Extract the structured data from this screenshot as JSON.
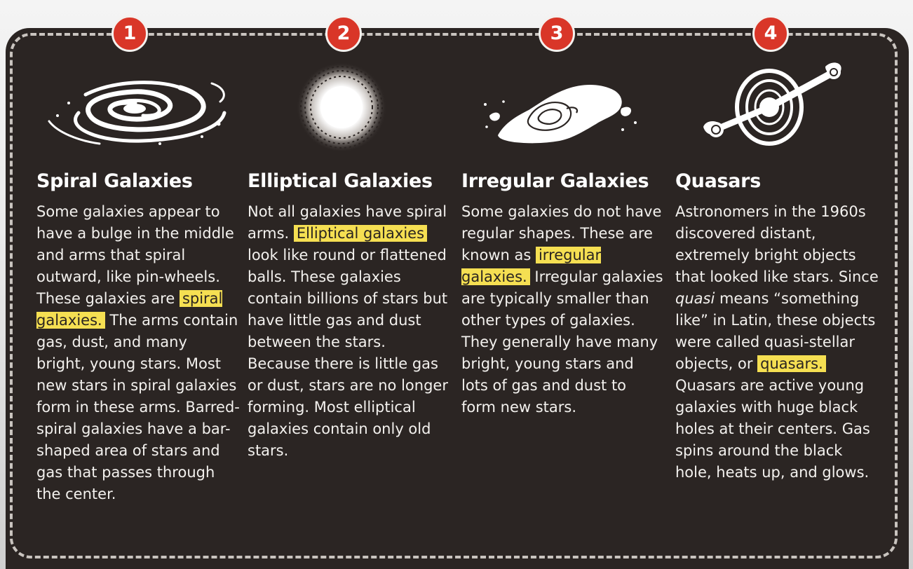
{
  "colors": {
    "panel": "#2b2523",
    "badge": "#d93628",
    "highlight": "#f5df52",
    "text": "#ffffff"
  },
  "columns": [
    {
      "number": "1",
      "icon": "spiral-galaxy-icon",
      "title": "Spiral Galaxies",
      "text_before": "Some galaxies appear to have a bulge in the middle and arms that spiral outward, like pin-wheels. These galaxies are ",
      "highlight": "spiral galaxies.",
      "text_after": " The arms contain gas, dust, and many bright, young stars. Most new stars in spiral galaxies form in these arms. Barred-spiral galaxies have a bar-shaped area of stars and gas that passes through the center."
    },
    {
      "number": "2",
      "icon": "elliptical-galaxy-icon",
      "title": "Elliptical Galaxies",
      "text_before": "Not all galaxies have spiral arms. ",
      "highlight": "Elliptical galaxies",
      "text_after": " look like round or flattened balls. These galaxies contain billions of stars but have little gas and dust between the stars. Because there is little gas or dust, stars are no longer forming. Most elliptical galaxies contain only old stars."
    },
    {
      "number": "3",
      "icon": "irregular-galaxy-icon",
      "title": "Irregular Galaxies",
      "text_before": "Some galaxies do not have regular shapes. These are known as ",
      "highlight": "irregular galaxies.",
      "text_after": " Irregular galaxies are typically smaller than other types of galaxies. They generally have many bright, young stars and lots of gas and dust to form new stars."
    },
    {
      "number": "4",
      "icon": "quasar-icon",
      "title": "Quasars",
      "text_before": "Astronomers in the 1960s discovered distant, extremely bright objects that looked like stars. Since ",
      "italic": "quasi",
      "text_middle": " means “something like” in Latin, these objects were called quasi-stellar objects, or ",
      "highlight": "quasars.",
      "text_after": " Quasars are active young galaxies with huge black holes at their centers. Gas spins around the black hole, heats up, and glows."
    }
  ]
}
